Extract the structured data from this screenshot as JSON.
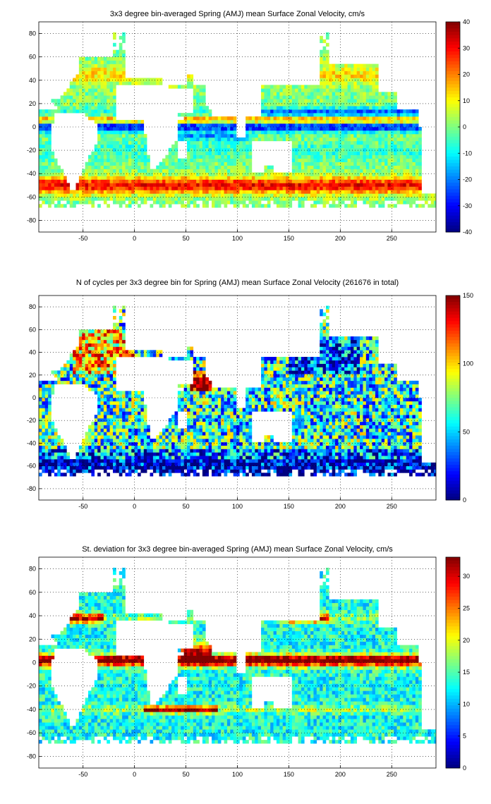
{
  "figure": {
    "panels": [
      {
        "title": "3x3 degree bin-averaged Spring (AMJ) mean Surface Zonal Velocity, cm/s",
        "colorbar": {
          "min": -40,
          "max": 40,
          "ticks": [
            "40",
            "30",
            "20",
            "10",
            "0",
            "-10",
            "-20",
            "-30",
            "-40"
          ]
        }
      },
      {
        "title": "N of cycles per 3x3 degree bin for Spring (AMJ) mean Surface Zonal Velocity (261676 in total)",
        "colorbar": {
          "min": 0,
          "max": 150,
          "ticks": [
            "150",
            "100",
            "50",
            "0"
          ]
        }
      },
      {
        "title": "St. deviation for 3x3 degree bin-averaged Spring (AMJ) mean Surface Zonal Velocity, cm/s",
        "colorbar": {
          "min": 0,
          "max": 33,
          "ticks": [
            "30",
            "25",
            "20",
            "15",
            "10",
            "5",
            "0"
          ]
        }
      }
    ],
    "colormap": "jet"
  },
  "chart_data": [
    {
      "type": "heatmap",
      "title": "3x3 degree bin-averaged Spring (AMJ) mean Surface Zonal Velocity, cm/s",
      "xlim": [
        -93,
        293
      ],
      "ylim": [
        -90,
        90
      ],
      "xticks": [
        -50,
        0,
        50,
        100,
        150,
        200,
        250
      ],
      "yticks": [
        80,
        60,
        40,
        20,
        0,
        -20,
        -40,
        -60,
        -80
      ],
      "colorbar_range": [
        -40,
        40
      ],
      "grid": true,
      "bin_size_deg": 3,
      "pattern": "westward (negative) equatorial flow near 0, eastward (positive) band along 5N countercurrent, strong eastward Antarctic Circumpolar Current near 50S (values 20 to 40)"
    },
    {
      "type": "heatmap",
      "title": "N of cycles per 3x3 degree bin for Spring (AMJ) mean Surface Zonal Velocity (261676 in total)",
      "xlim": [
        -93,
        293
      ],
      "ylim": [
        -90,
        90
      ],
      "xticks": [
        -50,
        0,
        50,
        100,
        150,
        200,
        250
      ],
      "yticks": [
        80,
        60,
        40,
        20,
        0,
        -20,
        -40,
        -60,
        -80
      ],
      "colorbar_range": [
        0,
        150
      ],
      "grid": true,
      "bin_size_deg": 3,
      "total": 261676,
      "pattern": "highest counts in the North Atlantic, Arabian Sea and subtropical gyres; low counts (near 0) along the Southern Ocean near 60S and coastal edges"
    },
    {
      "type": "heatmap",
      "title": "St. deviation for 3x3 degree bin-averaged Spring (AMJ) mean Surface Zonal Velocity, cm/s",
      "xlim": [
        -93,
        293
      ],
      "ylim": [
        -90,
        90
      ],
      "xticks": [
        -50,
        0,
        50,
        100,
        150,
        200,
        250
      ],
      "yticks": [
        80,
        60,
        40,
        20,
        0,
        -20,
        -40,
        -60,
        -80
      ],
      "colorbar_range": [
        0,
        33
      ],
      "grid": true,
      "bin_size_deg": 3,
      "pattern": "high variability (30+) along the equator, Gulf Stream, Kuroshio, Agulhas retroflection and Somali current; low (10 to 15) in subtropical gyres"
    }
  ]
}
